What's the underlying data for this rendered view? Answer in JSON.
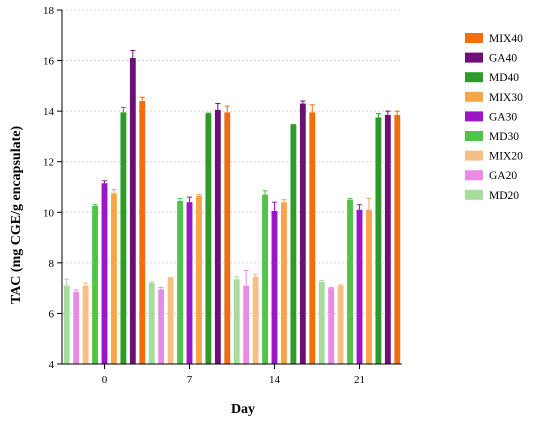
{
  "chart_data": {
    "type": "bar",
    "xlabel": "Day",
    "ylabel": "TAC (mg CGE/g encapsulate)",
    "ylim": [
      4,
      18
    ],
    "yticks": [
      4,
      6,
      8,
      10,
      12,
      14,
      16,
      18
    ],
    "grid": "horizontal dotted",
    "legend_position": "right",
    "categories": [
      "0",
      "7",
      "14",
      "21"
    ],
    "series": [
      {
        "name": "MD20",
        "color": "#a6dc9c",
        "values": [
          7.1,
          7.2,
          7.35,
          7.25
        ],
        "errors": [
          0.25,
          0.05,
          0.1,
          0.05
        ]
      },
      {
        "name": "GA20",
        "color": "#e98be6",
        "values": [
          6.85,
          6.95,
          7.1,
          7.0
        ],
        "errors": [
          0.08,
          0.08,
          0.6,
          0.03
        ]
      },
      {
        "name": "MIX20",
        "color": "#f8bf84",
        "values": [
          7.1,
          7.4,
          7.45,
          7.1
        ],
        "errors": [
          0.1,
          0.02,
          0.1,
          0.03
        ]
      },
      {
        "name": "MD30",
        "color": "#4ec54a",
        "values": [
          10.25,
          10.45,
          10.7,
          10.5
        ],
        "errors": [
          0.05,
          0.1,
          0.15,
          0.05
        ]
      },
      {
        "name": "GA30",
        "color": "#9b16c4",
        "values": [
          11.15,
          10.4,
          10.05,
          10.1
        ],
        "errors": [
          0.1,
          0.2,
          0.35,
          0.2
        ]
      },
      {
        "name": "MIX30",
        "color": "#f6a54b",
        "values": [
          10.75,
          10.65,
          10.4,
          10.1
        ],
        "errors": [
          0.15,
          0.05,
          0.1,
          0.45
        ]
      },
      {
        "name": "MD40",
        "color": "#2e9a2a",
        "values": [
          13.95,
          13.9,
          13.45,
          13.75
        ],
        "errors": [
          0.2,
          0.02,
          0.02,
          0.15
        ]
      },
      {
        "name": "GA40",
        "color": "#6e0e78",
        "values": [
          16.1,
          14.05,
          14.3,
          13.85
        ],
        "errors": [
          0.3,
          0.25,
          0.1,
          0.15
        ]
      },
      {
        "name": "MIX40",
        "color": "#f26d0f",
        "values": [
          14.4,
          13.95,
          13.95,
          13.85
        ],
        "errors": [
          0.15,
          0.25,
          0.3,
          0.15
        ]
      }
    ],
    "legend_order": [
      "MIX40",
      "GA40",
      "MD40",
      "MIX30",
      "GA30",
      "MD30",
      "MIX20",
      "GA20",
      "MD20"
    ]
  }
}
